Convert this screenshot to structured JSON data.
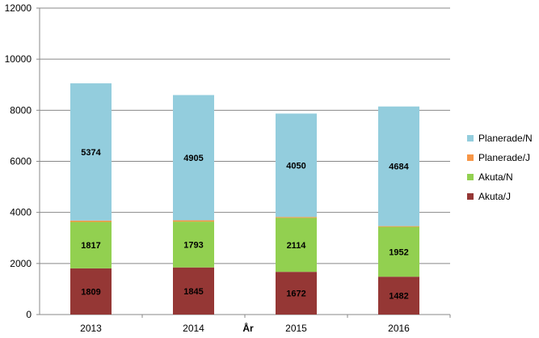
{
  "chart_data": {
    "type": "bar",
    "stacked": true,
    "categories": [
      "2013",
      "2014",
      "2015",
      "2016"
    ],
    "series": [
      {
        "name": "Akuta/J",
        "color": "#953735",
        "values": [
          1809,
          1845,
          1672,
          1482
        ]
      },
      {
        "name": "Akuta/N",
        "color": "#92d050",
        "values": [
          1817,
          1793,
          2114,
          1952
        ]
      },
      {
        "name": "Planerade/J",
        "color": "#f79646",
        "values": [
          54,
          52,
          34,
          29
        ]
      },
      {
        "name": "Planerade/N",
        "color": "#93cddd",
        "values": [
          5374,
          4905,
          4050,
          4684
        ]
      }
    ],
    "data_labels": true,
    "xlabel": "År",
    "ylabel": "",
    "ylim": [
      0,
      12000
    ],
    "yticks": [
      0,
      2000,
      4000,
      6000,
      8000,
      10000,
      12000
    ],
    "grid": true,
    "legend_position": "right"
  }
}
